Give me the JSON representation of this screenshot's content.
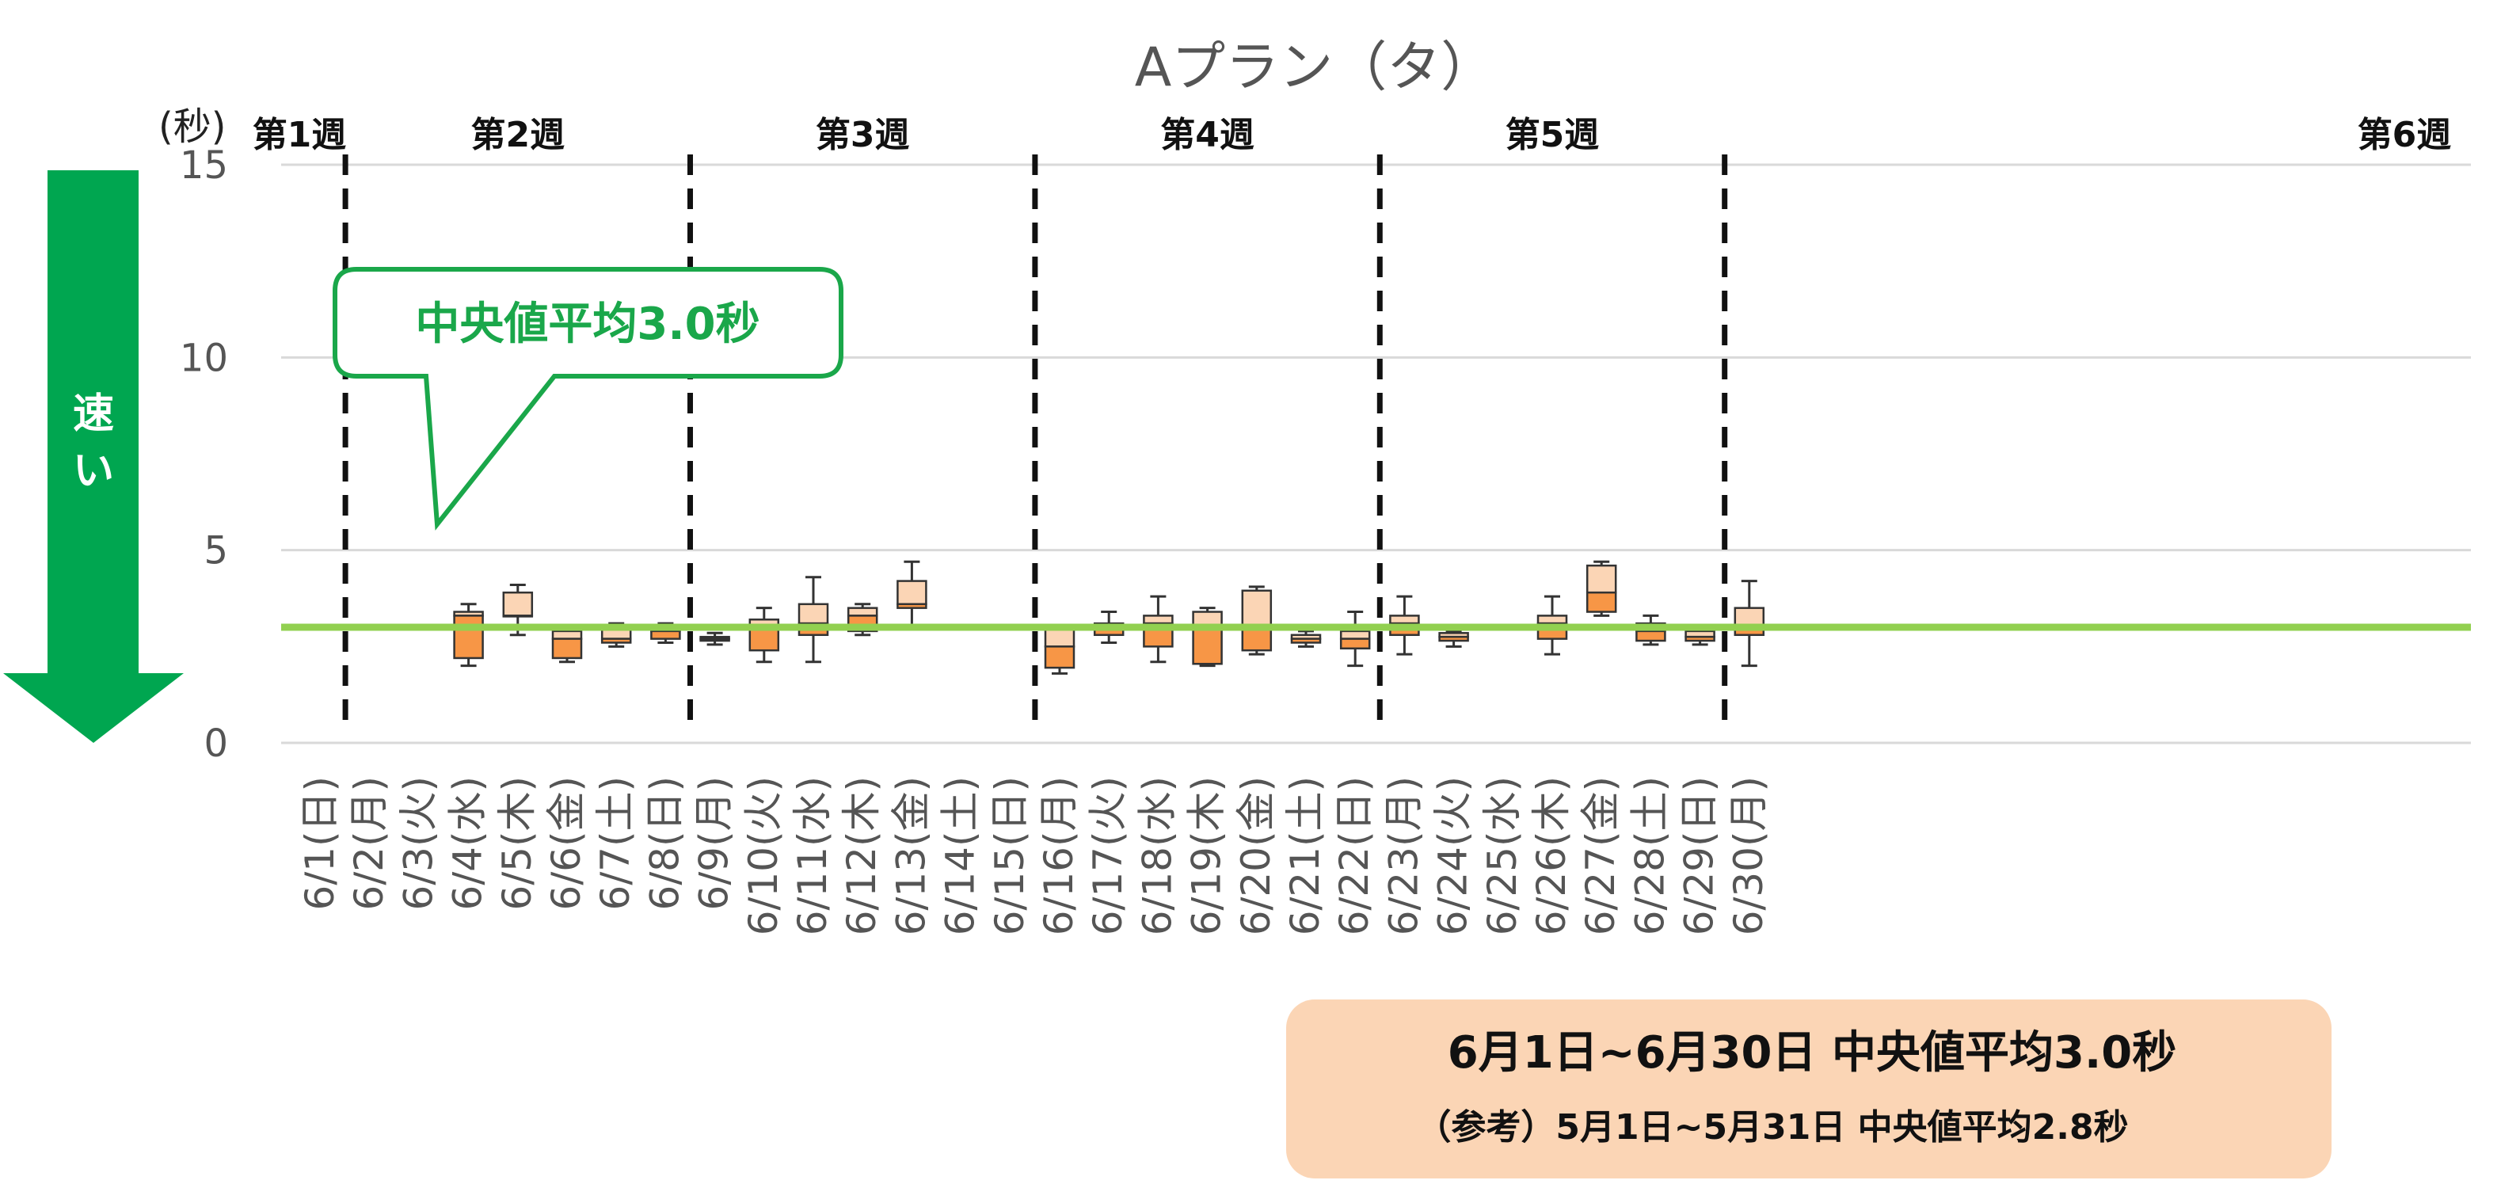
{
  "chart_data": {
    "type": "boxplot",
    "title": "Aプラン（タ）",
    "ylabel": "(秒)",
    "ylim": [
      0,
      15
    ],
    "yticks": [
      0,
      5,
      10,
      15
    ],
    "grid": true,
    "categories": [
      "6/1(日)",
      "6/2(月)",
      "6/3(火)",
      "6/4(水)",
      "6/5(木)",
      "6/6(金)",
      "6/7(土)",
      "6/8(日)",
      "6/9(月)",
      "6/10(火)",
      "6/11(水)",
      "6/12(木)",
      "6/13(金)",
      "6/14(土)",
      "6/15(日)",
      "6/16(月)",
      "6/17(火)",
      "6/18(水)",
      "6/19(木)",
      "6/20(金)",
      "6/21(土)",
      "6/22(日)",
      "6/23(月)",
      "6/24(火)",
      "6/25(水)",
      "6/26(木)",
      "6/27(金)",
      "6/28(土)",
      "6/29(日)",
      "6/30(月)"
    ],
    "boxes": [
      null,
      null,
      null,
      {
        "min": 2.0,
        "q1": 2.2,
        "median": 3.3,
        "q3": 3.4,
        "max": 3.6
      },
      {
        "min": 2.8,
        "q1": 3.3,
        "median": 3.3,
        "q3": 3.9,
        "max": 4.1
      },
      {
        "min": 2.1,
        "q1": 2.2,
        "median": 2.7,
        "q3": 2.9,
        "max": 2.9
      },
      {
        "min": 2.5,
        "q1": 2.6,
        "median": 2.7,
        "q3": 3.0,
        "max": 3.1
      },
      {
        "min": 2.6,
        "q1": 2.7,
        "median": 2.9,
        "q3": 3.0,
        "max": 3.1
      },
      {
        "min": 2.55,
        "q1": 2.65,
        "median": 2.7,
        "q3": 2.75,
        "max": 2.85
      },
      {
        "min": 2.1,
        "q1": 2.4,
        "median": 3.0,
        "q3": 3.2,
        "max": 3.5
      },
      {
        "min": 2.1,
        "q1": 2.8,
        "median": 3.1,
        "q3": 3.6,
        "max": 4.3
      },
      {
        "min": 2.8,
        "q1": 2.9,
        "median": 3.3,
        "q3": 3.5,
        "max": 3.6
      },
      {
        "min": 3.0,
        "q1": 3.5,
        "median": 3.6,
        "q3": 4.2,
        "max": 4.7
      },
      null,
      null,
      {
        "min": 1.8,
        "q1": 1.95,
        "median": 2.5,
        "q3": 3.0,
        "max": 3.0
      },
      {
        "min": 2.6,
        "q1": 2.8,
        "median": 3.0,
        "q3": 3.1,
        "max": 3.4
      },
      {
        "min": 2.1,
        "q1": 2.5,
        "median": 3.1,
        "q3": 3.3,
        "max": 3.8
      },
      {
        "min": 2.0,
        "q1": 2.05,
        "median": 3.0,
        "q3": 3.4,
        "max": 3.5
      },
      {
        "min": 2.3,
        "q1": 2.4,
        "median": 3.0,
        "q3": 3.95,
        "max": 4.05
      },
      {
        "min": 2.5,
        "q1": 2.6,
        "median": 2.7,
        "q3": 2.8,
        "max": 2.9
      },
      {
        "min": 2.0,
        "q1": 2.45,
        "median": 2.7,
        "q3": 2.9,
        "max": 3.4
      },
      {
        "min": 2.3,
        "q1": 2.8,
        "median": 3.1,
        "q3": 3.3,
        "max": 3.8
      },
      {
        "min": 2.5,
        "q1": 2.65,
        "median": 2.75,
        "q3": 2.85,
        "max": 2.9
      },
      {
        "min": 2.95,
        "q1": 3.0,
        "median": 3.0,
        "q3": 3.0,
        "max": 3.05
      },
      {
        "min": 2.3,
        "q1": 2.7,
        "median": 3.1,
        "q3": 3.3,
        "max": 3.8
      },
      {
        "min": 3.3,
        "q1": 3.4,
        "median": 3.9,
        "q3": 4.6,
        "max": 4.7
      },
      {
        "min": 2.55,
        "q1": 2.65,
        "median": 2.9,
        "q3": 3.1,
        "max": 3.3
      },
      {
        "min": 2.55,
        "q1": 2.65,
        "median": 2.75,
        "q3": 2.9,
        "max": 2.9
      },
      {
        "min": 2.0,
        "q1": 2.8,
        "median": 3.0,
        "q3": 3.5,
        "max": 4.2
      }
    ],
    "reference_line": {
      "value": 3.0,
      "color": "#92d050"
    },
    "weeks": [
      {
        "label": "第1週",
        "start_day": 1,
        "end_day": 1
      },
      {
        "label": "第2週",
        "start_day": 2,
        "end_day": 8
      },
      {
        "label": "第3週",
        "start_day": 9,
        "end_day": 15
      },
      {
        "label": "第4週",
        "start_day": 16,
        "end_day": 22
      },
      {
        "label": "第5週",
        "start_day": 23,
        "end_day": 29
      },
      {
        "label": "第6週",
        "start_day": 30,
        "end_day": 30
      }
    ],
    "colors": {
      "box_upper": "#fbd5b5",
      "box_lower": "#f79646",
      "arrow": "#00a650",
      "callout": "#1aa74a",
      "summary_bg": "#fbd5b5",
      "grid": "#d9d9d9",
      "axis_text": "#555555"
    }
  },
  "callout": {
    "text": "中央値平均3.0秒"
  },
  "speed_arrow": {
    "label": "速い",
    "icon": "down-arrow-icon"
  },
  "summary": {
    "line1": "6月1日~6月30日  中央値平均3.0秒",
    "line2": "（参考）5月1日~5月31日  中央値平均2.8秒"
  }
}
